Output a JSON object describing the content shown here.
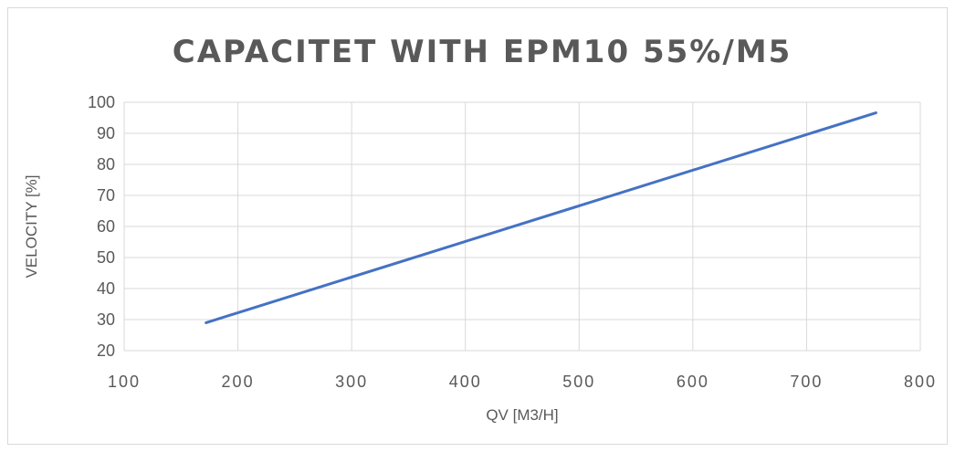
{
  "chart_data": {
    "type": "line",
    "title": "CAPACITET WITH EPM10 55%/M5",
    "xlabel": "QV [M3/H]",
    "ylabel": "VELOCITY [%]",
    "xlim": [
      100,
      800
    ],
    "ylim": [
      20,
      100
    ],
    "xticks": [
      100,
      200,
      300,
      400,
      500,
      600,
      700,
      800
    ],
    "yticks": [
      20,
      30,
      40,
      50,
      60,
      70,
      80,
      90,
      100
    ],
    "grid": true,
    "series": [
      {
        "color": "#4472c4",
        "x": [
          172,
          761
        ],
        "y": [
          29,
          96.6
        ]
      }
    ]
  }
}
